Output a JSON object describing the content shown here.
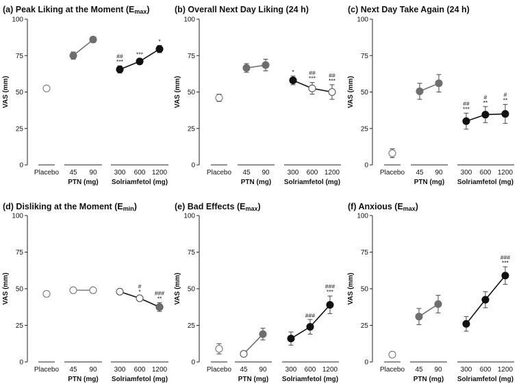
{
  "chart_data": [
    {
      "type": "scatter",
      "title": "(a) Peak Liking at the Moment (E",
      "title_sub": "max",
      "title_close": ")",
      "ylabel": "VAS (mm)",
      "ylim": [
        0,
        100
      ],
      "yticks": [
        "0",
        "25",
        "50",
        "75",
        "100"
      ],
      "categories": [
        "Placebo",
        "45",
        "90",
        "300",
        "600",
        "1200"
      ],
      "group_labels": [
        "PTN (mg)",
        "Solriamfetol (mg)"
      ],
      "series": [
        {
          "name": "Placebo",
          "color": "#ffffff",
          "points": [
            {
              "x": "Placebo",
              "y": 52.5,
              "err": 1.5,
              "sig": []
            }
          ]
        },
        {
          "name": "PTN",
          "color": "#6e6e6e",
          "points": [
            {
              "x": "45",
              "y": 75,
              "err": 2.5,
              "sig": []
            },
            {
              "x": "90",
              "y": 86,
              "err": 2,
              "sig": []
            }
          ]
        },
        {
          "name": "Solriamfetol",
          "color": "#111111",
          "points": [
            {
              "x": "300",
              "y": 65.5,
              "err": 2.5,
              "sig": [
                "##",
                "***"
              ]
            },
            {
              "x": "600",
              "y": 71,
              "err": 2,
              "sig": [
                "***"
              ]
            },
            {
              "x": "1200",
              "y": 79.5,
              "err": 2.5,
              "sig": [
                "*"
              ]
            }
          ]
        }
      ]
    },
    {
      "type": "scatter",
      "title": "(b) Overall Next Day Liking (24 h)",
      "title_sub": "",
      "title_close": "",
      "ylabel": "VAS (mm)",
      "ylim": [
        0,
        100
      ],
      "yticks": [
        "0",
        "25",
        "50",
        "75",
        "100"
      ],
      "categories": [
        "Placebo",
        "45",
        "90",
        "300",
        "600",
        "1200"
      ],
      "group_labels": [
        "PTN (mg)",
        "Solriamfetol (mg)"
      ],
      "series": [
        {
          "name": "Placebo",
          "color": "#ffffff",
          "points": [
            {
              "x": "Placebo",
              "y": 46,
              "err": 2.5,
              "sig": []
            }
          ]
        },
        {
          "name": "PTN",
          "color": "#6e6e6e",
          "points": [
            {
              "x": "45",
              "y": 66.5,
              "err": 3,
              "sig": []
            },
            {
              "x": "90",
              "y": 68.5,
              "err": 4,
              "sig": []
            }
          ]
        },
        {
          "name": "Solriamfetol",
          "color": "#111111",
          "points": [
            {
              "x": "300",
              "y": 58,
              "err": 3,
              "sig": [
                "*"
              ]
            },
            {
              "x": "600",
              "y": 52.5,
              "err": 4,
              "sig": [
                "##",
                "***"
              ],
              "open": true
            },
            {
              "x": "1200",
              "y": 50,
              "err": 5,
              "sig": [
                "##",
                "***"
              ],
              "open": true
            }
          ]
        }
      ]
    },
    {
      "type": "scatter",
      "title": "(c) Next Day Take Again (24 h)",
      "title_sub": "",
      "title_close": "",
      "ylabel": "VAS (mm)",
      "ylim": [
        0,
        100
      ],
      "yticks": [
        "0",
        "25",
        "50",
        "75",
        "100"
      ],
      "categories": [
        "Placebo",
        "45",
        "90",
        "300",
        "600",
        "1200"
      ],
      "group_labels": [
        "PTN (mg)",
        "Solriamfetol (mg)"
      ],
      "series": [
        {
          "name": "Placebo",
          "color": "#ffffff",
          "points": [
            {
              "x": "Placebo",
              "y": 8,
              "err": 3,
              "sig": []
            }
          ]
        },
        {
          "name": "PTN",
          "color": "#6e6e6e",
          "points": [
            {
              "x": "45",
              "y": 50.5,
              "err": 5.5,
              "sig": []
            },
            {
              "x": "90",
              "y": 56,
              "err": 6,
              "sig": []
            }
          ]
        },
        {
          "name": "Solriamfetol",
          "color": "#111111",
          "points": [
            {
              "x": "300",
              "y": 30,
              "err": 5.5,
              "sig": [
                "##",
                "***"
              ]
            },
            {
              "x": "600",
              "y": 34.5,
              "err": 5.5,
              "sig": [
                "#",
                "**"
              ]
            },
            {
              "x": "1200",
              "y": 35,
              "err": 6.5,
              "sig": [
                "#",
                "**"
              ]
            }
          ]
        }
      ]
    },
    {
      "type": "scatter",
      "title": "(d) Disliking at the Moment (E",
      "title_sub": "min",
      "title_close": ")",
      "ylabel": "VAS (mm)",
      "ylim": [
        0,
        100
      ],
      "yticks": [
        "0",
        "25",
        "50",
        "75",
        "100"
      ],
      "categories": [
        "Placebo",
        "45",
        "90",
        "300",
        "600",
        "1200"
      ],
      "group_labels": [
        "PTN (mg)",
        "Solriamfetol (mg)"
      ],
      "series": [
        {
          "name": "Placebo",
          "color": "#ffffff",
          "points": [
            {
              "x": "Placebo",
              "y": 46.5,
              "err": 2,
              "sig": []
            }
          ]
        },
        {
          "name": "PTN",
          "color": "#ffffff",
          "points": [
            {
              "x": "45",
              "y": 49,
              "err": 0.5,
              "sig": []
            },
            {
              "x": "90",
              "y": 49,
              "err": 0.5,
              "sig": []
            }
          ]
        },
        {
          "name": "Solriamfetol",
          "color": "#111111",
          "points": [
            {
              "x": "300",
              "y": 48,
              "err": 1,
              "sig": [],
              "open": true
            },
            {
              "x": "600",
              "y": 43.5,
              "err": 1.5,
              "sig": [
                "#",
                "*"
              ],
              "open": true
            },
            {
              "x": "1200",
              "y": 37.5,
              "err": 3,
              "sig": [
                "###",
                "**"
              ],
              "mid": true
            }
          ]
        }
      ]
    },
    {
      "type": "scatter",
      "title": "(e) Bad Effects (E",
      "title_sub": "max",
      "title_close": ")",
      "ylabel": "VAS (mm)",
      "ylim": [
        0,
        100
      ],
      "yticks": [
        "0",
        "25",
        "50",
        "75",
        "100"
      ],
      "categories": [
        "Placebo",
        "45",
        "90",
        "300",
        "600",
        "1200"
      ],
      "group_labels": [
        "PTN (mg)",
        "Solriamfetol (mg)"
      ],
      "series": [
        {
          "name": "Placebo",
          "color": "#ffffff",
          "points": [
            {
              "x": "Placebo",
              "y": 9,
              "err": 3.5,
              "sig": []
            }
          ]
        },
        {
          "name": "PTN",
          "color": "#6e6e6e",
          "points": [
            {
              "x": "45",
              "y": 5.5,
              "err": 1.5,
              "sig": [],
              "open": true
            },
            {
              "x": "90",
              "y": 19,
              "err": 4,
              "sig": []
            }
          ]
        },
        {
          "name": "Solriamfetol",
          "color": "#111111",
          "points": [
            {
              "x": "300",
              "y": 16,
              "err": 4.5,
              "sig": []
            },
            {
              "x": "600",
              "y": 24,
              "err": 5,
              "sig": [
                "###"
              ]
            },
            {
              "x": "1200",
              "y": 39,
              "err": 6,
              "sig": [
                "###",
                "***"
              ]
            }
          ]
        }
      ]
    },
    {
      "type": "scatter",
      "title": "(f) Anxious (E",
      "title_sub": "max",
      "title_close": ")",
      "ylabel": "VAS (mm)",
      "ylim": [
        0,
        100
      ],
      "yticks": [
        "0",
        "25",
        "50",
        "75",
        "100"
      ],
      "categories": [
        "Placebo",
        "45",
        "90",
        "300",
        "600",
        "1200"
      ],
      "group_labels": [
        "PTN (mg)",
        "Solriamfetol (mg)"
      ],
      "series": [
        {
          "name": "Placebo",
          "color": "#ffffff",
          "points": [
            {
              "x": "Placebo",
              "y": 5,
              "err": 1.5,
              "sig": []
            }
          ]
        },
        {
          "name": "PTN",
          "color": "#6e6e6e",
          "points": [
            {
              "x": "45",
              "y": 31,
              "err": 5.5,
              "sig": []
            },
            {
              "x": "90",
              "y": 39.5,
              "err": 6,
              "sig": []
            }
          ]
        },
        {
          "name": "Solriamfetol",
          "color": "#111111",
          "points": [
            {
              "x": "300",
              "y": 26,
              "err": 5,
              "sig": []
            },
            {
              "x": "600",
              "y": 42.5,
              "err": 5.5,
              "sig": []
            },
            {
              "x": "1200",
              "y": 59,
              "err": 6,
              "sig": [
                "###",
                "***"
              ]
            }
          ]
        }
      ]
    }
  ]
}
